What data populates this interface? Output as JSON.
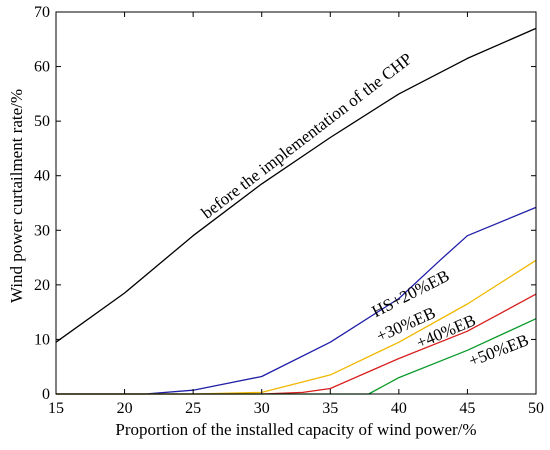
{
  "chart_data": {
    "type": "line",
    "title": "",
    "xlabel": "Proportion of the installed capacity of wind power/%",
    "ylabel": "Wind power curtailment rate/%",
    "xlim": [
      15,
      50
    ],
    "ylim": [
      0,
      70
    ],
    "xticks": [
      15,
      20,
      25,
      30,
      35,
      40,
      45,
      50
    ],
    "yticks": [
      0,
      10,
      20,
      30,
      40,
      50,
      60,
      70
    ],
    "grid": false,
    "series": [
      {
        "label": "before the implementation of the CHP",
        "color": "#000000",
        "x": [
          15,
          20,
          25,
          30,
          35,
          40,
          45,
          50
        ],
        "y": [
          9.5,
          18.5,
          29,
          38.5,
          47,
          55,
          61.5,
          67
        ]
      },
      {
        "label": "HS+20%EB",
        "color": "#1f1fa8",
        "x": [
          15,
          20,
          21.5,
          25,
          30,
          35,
          40,
          43,
          45,
          50
        ],
        "y": [
          0,
          0,
          0,
          0.7,
          3.2,
          9.5,
          17.5,
          24.5,
          29,
          34.2
        ]
      },
      {
        "label": "+30%EB",
        "color": "#f0b800",
        "x": [
          15,
          20,
          25,
          30,
          35,
          40,
          45,
          50
        ],
        "y": [
          0,
          0,
          0,
          0.3,
          3.5,
          9.5,
          16.5,
          24.5
        ]
      },
      {
        "label": "+40%EB",
        "color": "#d81e1e",
        "x": [
          15,
          20,
          25,
          30,
          33,
          35,
          40,
          45,
          50
        ],
        "y": [
          0,
          0,
          0,
          0,
          0.3,
          1,
          6.5,
          11.5,
          18.3
        ]
      },
      {
        "label": "+50%EB",
        "color": "#0a9a2a",
        "x": [
          15,
          20,
          25,
          30,
          35,
          37.8,
          40,
          45,
          50
        ],
        "y": [
          0,
          0,
          0,
          0,
          0,
          0,
          3,
          8,
          13.8
        ]
      }
    ]
  }
}
